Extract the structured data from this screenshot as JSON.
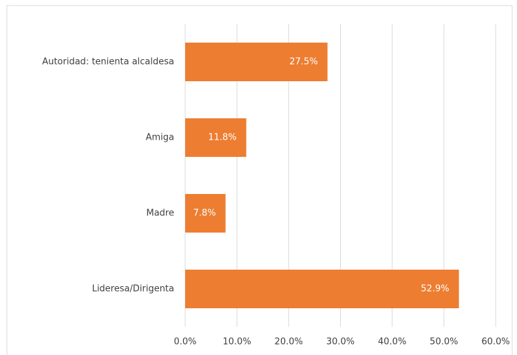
{
  "chart_data": {
    "type": "bar",
    "orientation": "horizontal",
    "categories": [
      "Autoridad: tenienta alcaldesa",
      "Amiga",
      "Madre",
      "Lideresa/Dirigenta"
    ],
    "values": [
      27.5,
      11.8,
      7.8,
      52.9
    ],
    "value_labels": [
      "27.5%",
      "11.8%",
      "7.8%",
      "52.9%"
    ],
    "color": "#ed7d31",
    "xlim": [
      0,
      60
    ],
    "xticks": [
      {
        "value": 0,
        "label": "0.0%"
      },
      {
        "value": 10,
        "label": "10.0%"
      },
      {
        "value": 20,
        "label": "20.0%"
      },
      {
        "value": 30,
        "label": "30.0%"
      },
      {
        "value": 40,
        "label": "40.0%"
      },
      {
        "value": 50,
        "label": "50.0%"
      },
      {
        "value": 60,
        "label": "60.0%"
      }
    ],
    "grid": true
  }
}
